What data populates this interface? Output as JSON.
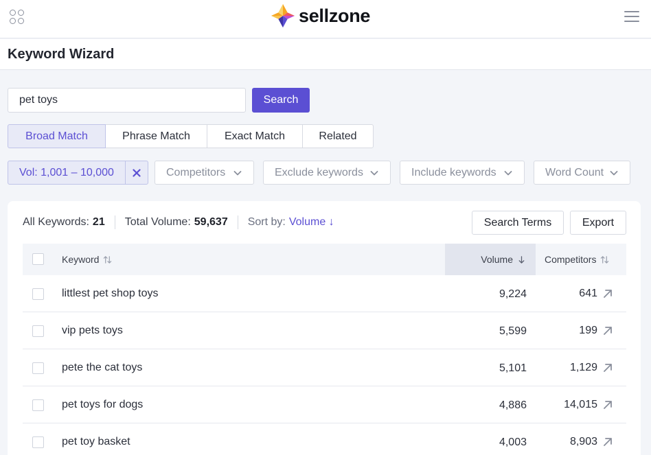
{
  "app": {
    "brand": "sellzone"
  },
  "page": {
    "title": "Keyword Wizard"
  },
  "search": {
    "value": "pet toys",
    "button_label": "Search"
  },
  "match_tabs": [
    {
      "label": "Broad Match",
      "active": true
    },
    {
      "label": "Phrase Match",
      "active": false
    },
    {
      "label": "Exact Match",
      "active": false
    },
    {
      "label": "Related",
      "active": false
    }
  ],
  "filters": {
    "volume_chip": "Vol: 1,001 – 10,000",
    "competitors": "Competitors",
    "exclude_keywords": "Exclude keywords",
    "include_keywords": "Include keywords",
    "word_count": "Word Count"
  },
  "summary": {
    "all_keywords_label": "All Keywords:",
    "all_keywords_count": "21",
    "total_volume_label": "Total Volume:",
    "total_volume_value": "59,637",
    "sort_label": "Sort by:",
    "sort_value": "Volume ↓"
  },
  "actions": {
    "search_terms": "Search Terms",
    "export": "Export"
  },
  "table": {
    "headers": {
      "keyword": "Keyword",
      "volume": "Volume",
      "competitors": "Competitors"
    },
    "rows": [
      {
        "keyword": "littlest pet shop toys",
        "volume": "9,224",
        "competitors": "641"
      },
      {
        "keyword": "vip pets toys",
        "volume": "5,599",
        "competitors": "199"
      },
      {
        "keyword": "pete the cat toys",
        "volume": "5,101",
        "competitors": "1,129"
      },
      {
        "keyword": "pet toys for dogs",
        "volume": "4,886",
        "competitors": "14,015"
      },
      {
        "keyword": "pet toy basket",
        "volume": "4,003",
        "competitors": "8,903"
      }
    ]
  },
  "colors": {
    "accent": "#5b4fd3",
    "accent_light": "#e8eaf7",
    "page_bg": "#f3f5f9"
  },
  "icons": [
    "apps-icon",
    "sellzone-logo-icon",
    "hamburger-menu-icon",
    "close-icon",
    "chevron-down-icon",
    "sort-icon",
    "sort-down-icon",
    "external-link-icon"
  ]
}
